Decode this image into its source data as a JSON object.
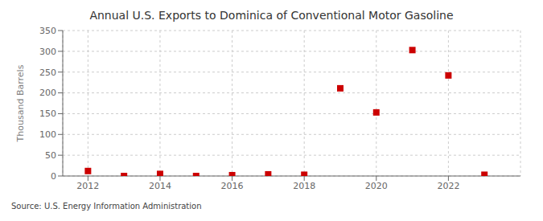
{
  "chart_data": {
    "type": "scatter",
    "title": "Annual U.S. Exports to Dominica of Conventional Motor Gasoline",
    "ylabel": "Thousand Barrels",
    "annotations": [
      "Source: U.S. Energy Information Administration"
    ],
    "x": [
      2012,
      2013,
      2014,
      2015,
      2016,
      2017,
      2018,
      2019,
      2020,
      2021,
      2022,
      2023
    ],
    "values": [
      12,
      0,
      5,
      0,
      2,
      4,
      3,
      211,
      153,
      303,
      242,
      3
    ],
    "color": "#cc0000",
    "marker": "square",
    "xlim": [
      2011.3,
      2024.0
    ],
    "xticks": [
      2012,
      2014,
      2016,
      2018,
      2020,
      2022
    ],
    "ylim": [
      0,
      350
    ],
    "yticks": [
      0,
      50,
      100,
      150,
      200,
      250,
      300,
      350
    ],
    "grid": true
  }
}
